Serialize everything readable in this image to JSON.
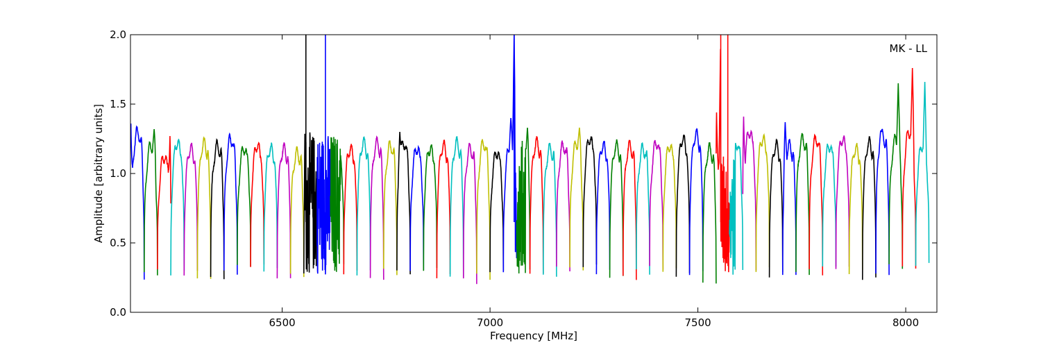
{
  "chart_data": {
    "type": "line",
    "title": "",
    "annotation": "MK - LL",
    "xlabel": "Frequency [MHz]",
    "ylabel": "Amplitude [arbitrary units]",
    "xlim": [
      6135,
      8075
    ],
    "ylim": [
      0.0,
      2.0
    ],
    "xticks": [
      6500,
      7000,
      7500,
      8000
    ],
    "xtick_labels": [
      "6500",
      "7000",
      "7500",
      "8000"
    ],
    "yticks": [
      0.0,
      0.5,
      1.0,
      1.5,
      2.0
    ],
    "ytick_labels": [
      "0.0",
      "0.5",
      "1.0",
      "1.5",
      "2.0"
    ],
    "grid": false,
    "legend": "none",
    "palette": [
      "#0000ff",
      "#008000",
      "#ff0000",
      "#00bfbf",
      "#bf00bf",
      "#bfbf00",
      "#000000"
    ],
    "channel_width_mhz": 32,
    "channels_start_mhz": 6136,
    "channel_plateaus": [
      1.3,
      1.2,
      1.12,
      1.22,
      1.18,
      1.22,
      1.2,
      1.25,
      1.18,
      1.2,
      1.18,
      1.18,
      1.15,
      1.18,
      1.22,
      1.2,
      1.18,
      1.22,
      1.22,
      1.2,
      1.22,
      1.18,
      1.18,
      1.2,
      1.22,
      1.18,
      1.22,
      1.15,
      1.2,
      1.25,
      1.22,
      1.18,
      1.2,
      1.22,
      1.25,
      1.2,
      1.2,
      1.2,
      1.18,
      1.22,
      1.2,
      1.25,
      1.28,
      1.18,
      1.25,
      1.22,
      1.3,
      1.25,
      1.2,
      1.2,
      1.25,
      1.25,
      1.2,
      1.25,
      1.18,
      1.22,
      1.28,
      1.25,
      1.3,
      1.2
    ],
    "channel_minima": [
      0.27,
      0.26,
      0.27,
      0.26,
      0.29,
      0.28,
      0.27,
      0.28,
      0.3,
      0.3,
      0.31,
      0.28,
      0.3,
      0.27,
      0.26,
      0.31,
      0.28,
      0.31,
      0.28,
      0.3,
      0.27,
      0.27,
      0.3,
      0.28,
      0.29,
      0.24,
      0.24,
      0.26,
      0.28,
      0.3,
      0.32,
      0.29,
      0.3,
      0.28,
      0.31,
      0.3,
      0.28,
      0.28,
      0.29,
      0.3,
      0.27,
      0.26,
      0.3,
      0.24,
      0.26,
      0.3,
      0.26,
      0.29,
      0.28,
      0.3,
      0.31,
      0.28,
      0.29,
      0.3,
      0.3,
      0.28,
      0.3,
      0.32,
      0.3,
      0.31
    ],
    "peaks": [
      {
        "x": 6136,
        "y": 1.36
      },
      {
        "x": 6192,
        "y": 1.32
      },
      {
        "x": 6230,
        "y": 1.27
      },
      {
        "x": 6557,
        "y": 2.0
      },
      {
        "x": 6570,
        "y": 1.3
      },
      {
        "x": 6580,
        "y": 1.4
      },
      {
        "x": 6604,
        "y": 2.0
      },
      {
        "x": 6610,
        "y": 1.35
      },
      {
        "x": 6625,
        "y": 1.33
      },
      {
        "x": 6783,
        "y": 1.3
      },
      {
        "x": 7050,
        "y": 1.4
      },
      {
        "x": 7058,
        "y": 2.0
      },
      {
        "x": 7090,
        "y": 1.33
      },
      {
        "x": 7215,
        "y": 1.33
      },
      {
        "x": 7545,
        "y": 1.44
      },
      {
        "x": 7555,
        "y": 2.0
      },
      {
        "x": 7572,
        "y": 2.0
      },
      {
        "x": 7610,
        "y": 1.41
      },
      {
        "x": 7710,
        "y": 1.37
      },
      {
        "x": 7940,
        "y": 1.31
      },
      {
        "x": 7982,
        "y": 1.65
      },
      {
        "x": 8016,
        "y": 1.76
      },
      {
        "x": 8046,
        "y": 1.66
      }
    ],
    "noisy_regions": [
      {
        "x_start": 6555,
        "x_end": 6640,
        "y_min": 0.27,
        "y_max": 1.3
      },
      {
        "x_start": 7060,
        "x_end": 7085,
        "y_min": 0.28,
        "y_max": 1.25
      },
      {
        "x_start": 7555,
        "x_end": 7590,
        "y_min": 0.24,
        "y_max": 1.15
      }
    ]
  }
}
